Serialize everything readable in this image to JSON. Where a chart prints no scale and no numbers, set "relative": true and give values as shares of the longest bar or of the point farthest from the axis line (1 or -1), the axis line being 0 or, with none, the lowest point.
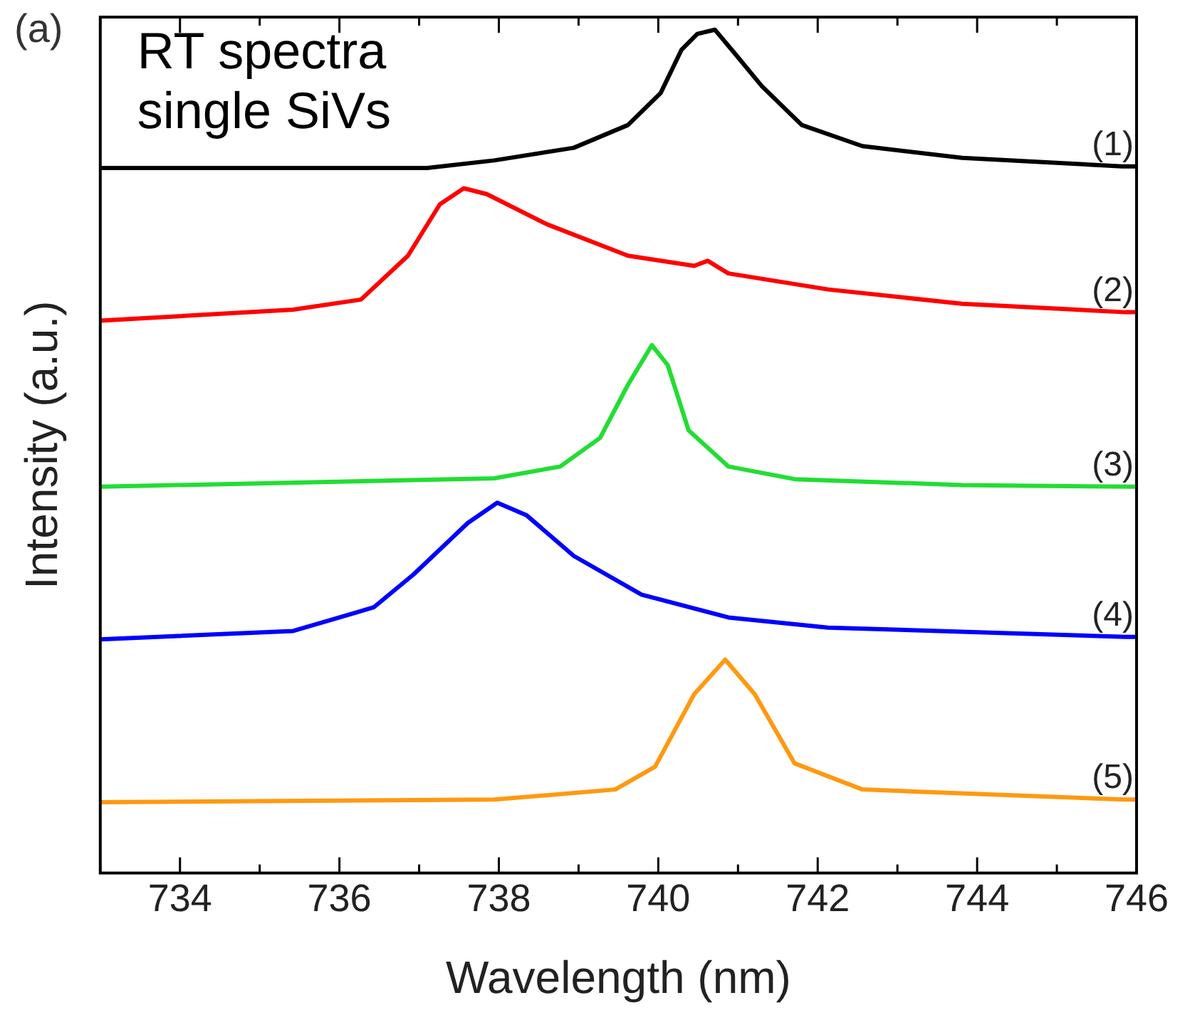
{
  "chart_data": {
    "type": "line",
    "relative": true,
    "xlabel": "Wavelength (nm)",
    "ylabel": "Intensity (a.u.)",
    "xlim": [
      733,
      746
    ],
    "xticks": [
      {
        "value": 733,
        "label": null
      },
      734,
      {
        "value": 735,
        "label": null
      },
      736,
      {
        "value": 737,
        "label": null
      },
      738,
      {
        "value": 739,
        "label": null
      },
      740,
      {
        "value": 741,
        "label": null
      },
      742,
      {
        "value": 743,
        "label": null
      },
      744,
      {
        "value": 745,
        "label": null
      },
      746
    ],
    "grid": false,
    "legend": false,
    "marker": "none",
    "line_style": "solid",
    "annotations": [
      "(a)",
      "RT spectra\nsingle SiVs"
    ],
    "series": [
      {
        "name": "(1)",
        "color": "#000000",
        "x": [
          733,
          737.1,
          737.94,
          738.94,
          739.62,
          740.03,
          740.29,
          740.49,
          740.71,
          740.95,
          741.3,
          741.8,
          742.56,
          743.81,
          745.82,
          746
        ],
        "values": [
          0.836,
          0.836,
          0.845,
          0.86,
          0.887,
          0.925,
          0.976,
          0.995,
          1,
          0.973,
          0.933,
          0.887,
          0.862,
          0.848,
          0.838,
          0.838
        ]
      },
      {
        "name": "(2)",
        "color": "#ff0000",
        "x": [
          733,
          735.42,
          736.27,
          736.86,
          737.26,
          737.56,
          737.85,
          738.61,
          739.62,
          740.45,
          740.62,
          740.88,
          742.13,
          743.81,
          745.86,
          746
        ],
        "values": [
          0.655,
          0.668,
          0.68,
          0.732,
          0.793,
          0.812,
          0.805,
          0.769,
          0.732,
          0.72,
          0.726,
          0.711,
          0.692,
          0.675,
          0.665,
          0.665
        ]
      },
      {
        "name": "(3)",
        "color": "#22dd33",
        "x": [
          733,
          737.94,
          738.77,
          739.27,
          739.62,
          739.92,
          740.12,
          740.38,
          740.88,
          741.71,
          743.81,
          746
        ],
        "values": [
          0.458,
          0.468,
          0.482,
          0.516,
          0.579,
          0.626,
          0.602,
          0.525,
          0.482,
          0.467,
          0.46,
          0.458
        ]
      },
      {
        "name": "(4)",
        "color": "#0000ff",
        "x": [
          733,
          735.42,
          736.43,
          736.93,
          737.61,
          737.98,
          738.35,
          738.94,
          739.79,
          740.88,
          742.13,
          745.86,
          746
        ],
        "values": [
          0.277,
          0.287,
          0.315,
          0.354,
          0.415,
          0.439,
          0.424,
          0.376,
          0.33,
          0.303,
          0.291,
          0.28,
          0.28
        ]
      },
      {
        "name": "(5)",
        "color": "#ff9911",
        "x": [
          733,
          737.94,
          739.46,
          739.96,
          740.45,
          740.84,
          741.21,
          741.71,
          742.56,
          745.86,
          746
        ],
        "values": [
          0.084,
          0.087,
          0.099,
          0.126,
          0.212,
          0.253,
          0.212,
          0.13,
          0.099,
          0.087,
          0.087
        ]
      }
    ]
  }
}
